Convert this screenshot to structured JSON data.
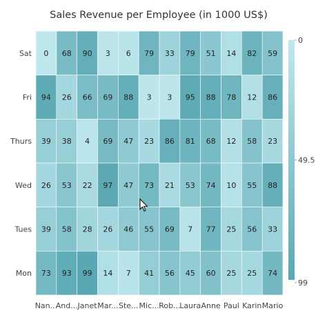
{
  "chart_data": {
    "type": "heatmap",
    "title": "Sales Revenue per Employee (in 1000 US$)",
    "x_categories": [
      "Nan...",
      "And...",
      "Janet",
      "Mar...",
      "Ste...",
      "Mic...",
      "Rob...",
      "Laura",
      "Anne",
      "Paul",
      "Karin",
      "Mario"
    ],
    "y_categories": [
      "Sat",
      "Fri",
      "Thurs",
      "Wed",
      "Tues",
      "Mon"
    ],
    "values": [
      [
        0,
        68,
        90,
        3,
        6,
        79,
        33,
        79,
        51,
        14,
        82,
        59
      ],
      [
        94,
        26,
        66,
        69,
        88,
        3,
        3,
        95,
        88,
        78,
        12,
        86
      ],
      [
        39,
        38,
        4,
        69,
        47,
        23,
        86,
        81,
        68,
        12,
        58,
        23
      ],
      [
        26,
        53,
        22,
        97,
        47,
        73,
        21,
        53,
        74,
        10,
        55,
        88
      ],
      [
        39,
        58,
        28,
        26,
        46,
        55,
        69,
        7,
        77,
        25,
        56,
        33
      ],
      [
        73,
        93,
        99,
        14,
        7,
        41,
        56,
        45,
        60,
        25,
        25,
        74
      ]
    ],
    "color_range": {
      "min": 0,
      "mid": 49.5,
      "max": 99,
      "low_color": "#bfe8ee",
      "high_color": "#5aa8b3"
    },
    "legend": {
      "position": "right",
      "labels": [
        "0",
        "49.5",
        "99"
      ]
    }
  }
}
